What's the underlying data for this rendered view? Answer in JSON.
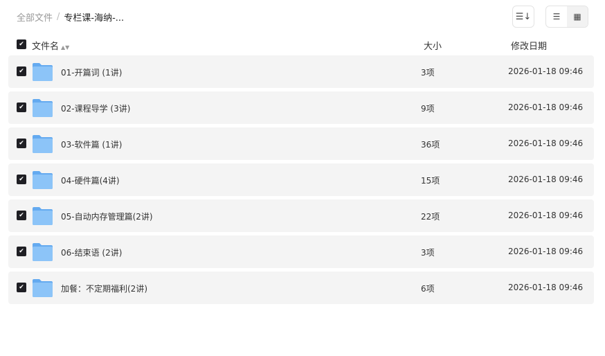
{
  "breadcrumb": {
    "root": "全部文件",
    "separator": "/",
    "current": "专栏课-海纳-..."
  },
  "toolbar": {
    "sort_icon": "sort-icon",
    "list_icon": "list-view-icon",
    "grid_icon": "grid-view-icon"
  },
  "header": {
    "name": "文件名",
    "size": "大小",
    "date": "修改日期"
  },
  "rows": [
    {
      "name": "01-开篇词 (1讲)",
      "size": "3项",
      "date": "2026-01-18 09:46"
    },
    {
      "name": "02-课程导学 (3讲)",
      "size": "9项",
      "date": "2026-01-18 09:46"
    },
    {
      "name": "03-软件篇 (1讲)",
      "size": "36项",
      "date": "2026-01-18 09:46"
    },
    {
      "name": "04-硬件篇(4讲)",
      "size": "15项",
      "date": "2026-01-18 09:46"
    },
    {
      "name": "05-自动内存管理篇(2讲)",
      "size": "22项",
      "date": "2026-01-18 09:46"
    },
    {
      "name": "06-结束语 (2讲)",
      "size": "3项",
      "date": "2026-01-18 09:46"
    },
    {
      "name": "加餐：不定期福利(2讲)",
      "size": "6项",
      "date": "2026-01-18 09:46"
    }
  ]
}
